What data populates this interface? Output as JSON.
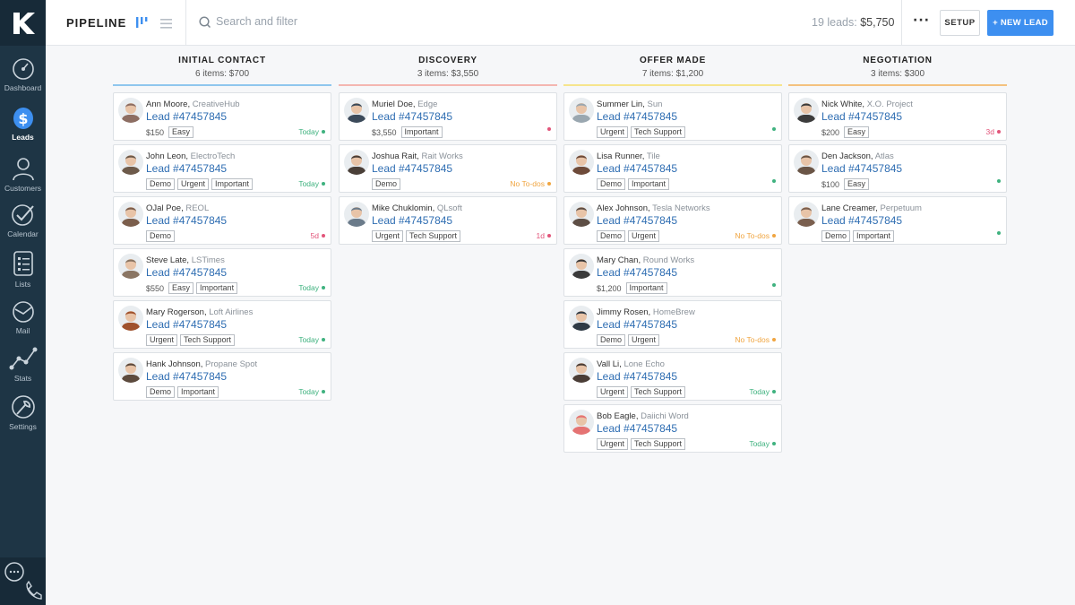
{
  "nav": {
    "items": [
      {
        "label": "Dashboard"
      },
      {
        "label": "Leads"
      },
      {
        "label": "Customers"
      },
      {
        "label": "Calendar"
      },
      {
        "label": "Lists"
      },
      {
        "label": "Mail"
      },
      {
        "label": "Stats"
      },
      {
        "label": "Settings"
      }
    ]
  },
  "header": {
    "title": "PIPELINE",
    "search_placeholder": "Search and filter",
    "summary_count": "19 leads:",
    "summary_value": "$5,750",
    "more_label": "···",
    "setup_label": "SETUP",
    "new_lead_label": "+ NEW LEAD"
  },
  "colors": {
    "accent": "#3d8ff0",
    "sidebar": "#1e3545",
    "status_today": "#3fb27f",
    "status_overdue": "#e2557a",
    "status_todos": "#f0a540",
    "lead_link": "#2e6db2",
    "col_initial": "#8fc6ee",
    "col_discovery": "#f4b6b0",
    "col_offer": "#f6e58d",
    "col_negotiation": "#f4c27f"
  },
  "columns": [
    {
      "title": "INITIAL CONTACT",
      "subtitle": "6 items: $700",
      "cards": [
        {
          "name": "Ann Moore,",
          "company": "CreativeHub",
          "lead": "Lead #47457845",
          "amount": "$150",
          "tags": [
            "Easy"
          ],
          "status": "Today",
          "status_color": "#3fb27f",
          "avatar": "#8d6e63"
        },
        {
          "name": "John Leon,",
          "company": "ElectroTech",
          "lead": "Lead #47457845",
          "amount": "",
          "tags": [
            "Demo",
            "Urgent",
            "Important"
          ],
          "status": "Today",
          "status_color": "#3fb27f",
          "avatar": "#6d5a4a"
        },
        {
          "name": "OJal Poe,",
          "company": "REOL",
          "lead": "Lead #47457845",
          "amount": "",
          "tags": [
            "Demo"
          ],
          "status": "5d",
          "status_color": "#e2557a",
          "avatar": "#7b5e4c"
        },
        {
          "name": "Steve Late,",
          "company": "LSTimes",
          "lead": "Lead #47457845",
          "amount": "$550",
          "tags": [
            "Easy",
            "Important"
          ],
          "status": "Today",
          "status_color": "#3fb27f",
          "avatar": "#8a7563"
        },
        {
          "name": "Mary Rogerson,",
          "company": "Loft Airlines",
          "lead": "Lead #47457845",
          "amount": "",
          "tags": [
            "Urgent",
            "Tech Support"
          ],
          "status": "Today",
          "status_color": "#3fb27f",
          "avatar": "#a0522d"
        },
        {
          "name": "Hank Johnson,",
          "company": "Propane Spot",
          "lead": "Lead #47457845",
          "amount": "",
          "tags": [
            "Demo",
            "Important"
          ],
          "status": "Today",
          "status_color": "#3fb27f",
          "avatar": "#5c4a3d"
        }
      ]
    },
    {
      "title": "DISCOVERY",
      "subtitle": "3 items: $3,550",
      "cards": [
        {
          "name": "Muriel Doe,",
          "company": "Edge",
          "lead": "Lead #47457845",
          "amount": "$3,550",
          "tags": [
            "Important"
          ],
          "status": "",
          "status_color": "#e2557a",
          "avatar": "#3b4a5a"
        },
        {
          "name": "Joshua Rait,",
          "company": "Rait Works",
          "lead": "Lead #47457845",
          "amount": "",
          "tags": [
            "Demo"
          ],
          "status": "No To-dos",
          "status_color": "#f0a540",
          "avatar": "#4a3f38"
        },
        {
          "name": "Mike Chuklomin,",
          "company": "QLsoft",
          "lead": "Lead #47457845",
          "amount": "",
          "tags": [
            "Urgent",
            "Tech Support"
          ],
          "status": "1d",
          "status_color": "#e2557a",
          "avatar": "#6b7b8a"
        }
      ]
    },
    {
      "title": "OFFER MADE",
      "subtitle": "7 items: $1,200",
      "cards": [
        {
          "name": "Summer Lin,",
          "company": "Sun",
          "lead": "Lead #47457845",
          "amount": "",
          "tags": [
            "Urgent",
            "Tech Support"
          ],
          "status": "",
          "status_color": "#3fb27f",
          "avatar": "#9aa7b0"
        },
        {
          "name": "Lisa Runner,",
          "company": "Tile",
          "lead": "Lead #47457845",
          "amount": "",
          "tags": [
            "Demo",
            "Important"
          ],
          "status": "",
          "status_color": "#3fb27f",
          "avatar": "#6e4b3a"
        },
        {
          "name": "Alex Johnson,",
          "company": "Tesla Networks",
          "lead": "Lead #47457845",
          "amount": "",
          "tags": [
            "Demo",
            "Urgent"
          ],
          "status": "No To-dos",
          "status_color": "#f0a540",
          "avatar": "#5d4e45"
        },
        {
          "name": "Mary Chan,",
          "company": "Round Works",
          "lead": "Lead #47457845",
          "amount": "$1,200",
          "tags": [
            "Important"
          ],
          "status": "",
          "status_color": "#3fb27f",
          "avatar": "#3a3a3a"
        },
        {
          "name": "Jimmy Rosen,",
          "company": "HomeBrew",
          "lead": "Lead #47457845",
          "amount": "",
          "tags": [
            "Demo",
            "Urgent"
          ],
          "status": "No To-dos",
          "status_color": "#f0a540",
          "avatar": "#2f3a45"
        },
        {
          "name": "Vall Li,",
          "company": "Lone Echo",
          "lead": "Lead #47457845",
          "amount": "",
          "tags": [
            "Urgent",
            "Tech Support"
          ],
          "status": "Today",
          "status_color": "#3fb27f",
          "avatar": "#4a3d36"
        },
        {
          "name": "Bob Eagle,",
          "company": "Daiichi Word",
          "lead": "Lead #47457845",
          "amount": "",
          "tags": [
            "Urgent",
            "Tech Support"
          ],
          "status": "Today",
          "status_color": "#3fb27f",
          "avatar": "#e57373"
        }
      ]
    },
    {
      "title": "NEGOTIATION",
      "subtitle": "3 items: $300",
      "cards": [
        {
          "name": "Nick White,",
          "company": "X.O. Project",
          "lead": "Lead #47457845",
          "amount": "$200",
          "tags": [
            "Easy"
          ],
          "status": "3d",
          "status_color": "#e2557a",
          "avatar": "#3c3c3c"
        },
        {
          "name": "Den Jackson,",
          "company": "Atlas",
          "lead": "Lead #47457845",
          "amount": "$100",
          "tags": [
            "Easy"
          ],
          "status": "",
          "status_color": "#3fb27f",
          "avatar": "#6a5546"
        },
        {
          "name": "Lane Creamer,",
          "company": "Perpetuum",
          "lead": "Lead #47457845",
          "amount": "",
          "tags": [
            "Demo",
            "Important"
          ],
          "status": "",
          "status_color": "#3fb27f",
          "avatar": "#7a5f4e"
        }
      ]
    }
  ]
}
